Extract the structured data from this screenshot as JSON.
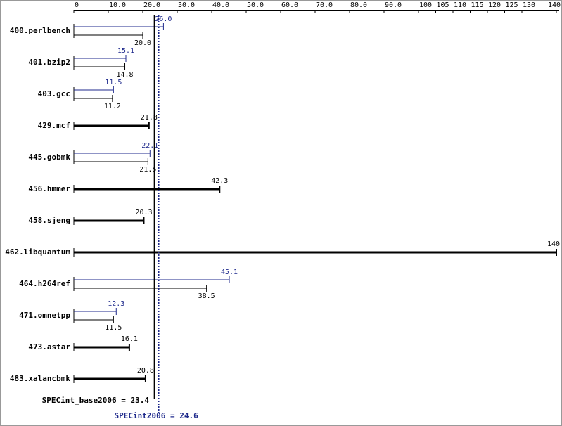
{
  "chart_data": {
    "type": "bar",
    "categories": [
      "400.perlbench",
      "401.bzip2",
      "403.gcc",
      "429.mcf",
      "445.gobmk",
      "456.hmmer",
      "458.sjeng",
      "462.libquantum",
      "464.h264ref",
      "471.omnetpp",
      "473.astar",
      "483.xalancbmk"
    ],
    "series": [
      {
        "color": "#000000",
        "values": [
          20.0,
          14.8,
          11.2,
          21.8,
          21.5,
          42.3,
          20.3,
          140,
          38.5,
          11.5,
          16.1,
          20.8
        ],
        "value_labels": [
          "20.0",
          "14.8",
          "11.2",
          "21.8",
          "21.5",
          "42.3",
          "20.3",
          "140",
          "38.5",
          "11.5",
          "16.1",
          "20.8"
        ]
      },
      {
        "color": "#1f2a8c",
        "values": [
          26.0,
          15.1,
          11.5,
          null,
          22.1,
          null,
          null,
          null,
          45.1,
          12.3,
          null,
          null
        ],
        "value_labels": [
          "26.0",
          "15.1",
          "11.5",
          null,
          "22.1",
          null,
          null,
          null,
          "45.1",
          "12.3",
          null,
          null
        ]
      }
    ],
    "xlim": [
      0,
      140
    ],
    "xticks": [
      0,
      {
        "value": 10,
        "label": "10.0"
      },
      {
        "value": 20,
        "label": "20.0"
      },
      {
        "value": 30,
        "label": "30.0"
      },
      {
        "value": 40,
        "label": "40.0"
      },
      {
        "value": 50,
        "label": "50.0"
      },
      {
        "value": 60,
        "label": "60.0"
      },
      {
        "value": 70,
        "label": "70.0"
      },
      {
        "value": 80,
        "label": "80.0"
      },
      {
        "value": 90,
        "label": "90.0"
      },
      100,
      105,
      110,
      115,
      120,
      125,
      130,
      140
    ],
    "reference_lines": [
      {
        "label": "SPECint_base2006 = 23.4",
        "value": 23.4,
        "color": "#000000"
      },
      {
        "label": "SPECint2006 = 24.6",
        "value": 24.6,
        "color": "#1f2a8c"
      }
    ]
  }
}
